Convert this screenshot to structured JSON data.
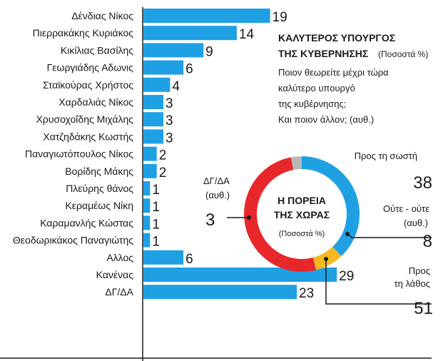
{
  "chart_data": [
    {
      "type": "bar",
      "orientation": "horizontal",
      "categories": [
        "Δένδιας Νίκος",
        "Πιερρακάκης Κυριάκος",
        "Κικίλιας Βασίλης",
        "Γεωργιάδης Αδωνις",
        "Σταϊκούρας Χρήστος",
        "Χαρδαλιάς Νίκος",
        "Χρυσοχοΐδης Μιχάλης",
        "Χατζηδάκης Κωστής",
        "Παναγιωτόπουλος Νίκος",
        "Βορίδης Μάκης",
        "Πλεύρης θάνος",
        "Κεραμέως Νίκη",
        "Καραμανλής Κώστας",
        "Θεοδωρικάκος Παναγιώτης",
        "Αλλος",
        "Κανένας",
        "ΔΓ/ΔΑ"
      ],
      "values": [
        19,
        14,
        9,
        6,
        4,
        3,
        3,
        3,
        2,
        2,
        1,
        1,
        1,
        1,
        6,
        29,
        23
      ],
      "value_labels": [
        "19",
        "14",
        "9",
        "6",
        "4",
        "3",
        "3",
        "3",
        "2",
        "2",
        "1",
        "1",
        "1",
        "1",
        "6",
        "29",
        "23"
      ],
      "title": "ΚΑΛΥΤΕΡΟΣ ΥΠΟΥΡΓΟΣ ΤΗΣ ΚΥΒΕΡΝΗΣΗΣ",
      "title_lines": [
        "ΚΑΛΥΤΕΡΟΣ ΥΠΟΥΡΓΟΣ",
        "ΤΗΣ ΚΥΒΕΡΝΗΣΗΣ"
      ],
      "subtitle": "(Ποσοστά %)",
      "question_lines": [
        "Ποιον θεωρείτε μέχρι τώρα",
        "καλύτερο υπουργό",
        "της κυβέρνησης;",
        "Και ποιον άλλον; (αυθ.)"
      ],
      "xlim": [
        0,
        30
      ],
      "bar_color": "#1fa0e3"
    },
    {
      "type": "pie",
      "variant": "donut",
      "title": "Η ΠΟΡΕΙΑ ΤΗΣ ΧΩΡΑΣ",
      "title_lines": [
        "Η ΠΟΡΕΙΑ",
        "ΤΗΣ ΧΩΡΑΣ"
      ],
      "subtitle": "(Ποσοστά %)",
      "slices": [
        {
          "label_lines": [
            "Προς τη σωστή"
          ],
          "value": 38,
          "value_label": "38",
          "color": "#1fa0e3"
        },
        {
          "label_lines": [
            "Ούτε - ούτε",
            "(αυθ.)"
          ],
          "value": 8,
          "value_label": "8",
          "color": "#f5b820"
        },
        {
          "label_lines": [
            "Προς",
            "τη λάθος"
          ],
          "value": 51,
          "value_label": "51",
          "color": "#e8272b"
        },
        {
          "label_lines": [
            "ΔΓ/ΔΑ",
            "(αυθ.)"
          ],
          "value": 3,
          "value_label": "3",
          "color": "#b8b8b8"
        }
      ]
    }
  ]
}
